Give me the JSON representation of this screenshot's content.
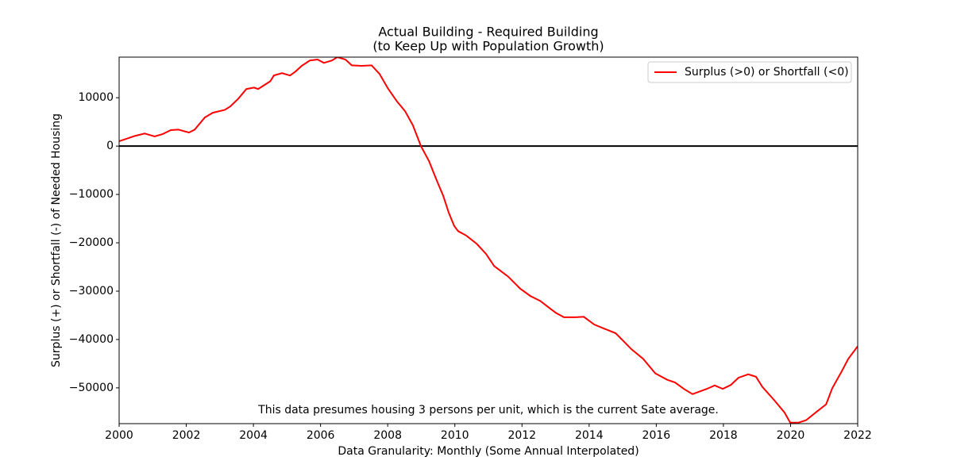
{
  "chart_data": {
    "type": "line",
    "title": [
      "Actual Building - Required Building",
      "(to Keep Up with Population Growth)"
    ],
    "xlabel": "Data Granularity: Monthly (Some Annual Interpolated)",
    "ylabel": "Surplus (+) or Shortfall (-) of Needed Housing",
    "annotation": "This data presumes housing 3 persons per unit, which is the current Sate average.",
    "x": [
      2000.0,
      2000.47,
      2000.76,
      2001.06,
      2001.3,
      2001.54,
      2001.77,
      2002.08,
      2002.25,
      2002.55,
      2002.79,
      2003.15,
      2003.31,
      2003.55,
      2003.79,
      2004.02,
      2004.14,
      2004.5,
      2004.61,
      2004.85,
      2005.09,
      2005.25,
      2005.44,
      2005.68,
      2005.91,
      2006.1,
      2006.34,
      2006.5,
      2006.74,
      2006.93,
      2007.22,
      2007.52,
      2007.76,
      2008.0,
      2008.28,
      2008.52,
      2008.75,
      2008.99,
      2009.23,
      2009.46,
      2009.65,
      2009.82,
      2009.98,
      2010.1,
      2010.34,
      2010.65,
      2010.93,
      2011.17,
      2011.59,
      2011.95,
      2012.25,
      2012.54,
      2012.82,
      2013.01,
      2013.25,
      2013.6,
      2013.84,
      2014.15,
      2014.43,
      2014.79,
      2015.02,
      2015.26,
      2015.61,
      2015.97,
      2016.32,
      2016.56,
      2016.84,
      2017.08,
      2017.27,
      2017.51,
      2017.74,
      2017.98,
      2018.22,
      2018.45,
      2018.74,
      2018.97,
      2019.16,
      2019.52,
      2019.82,
      2019.99,
      2020.23,
      2020.46,
      2020.82,
      2021.06,
      2021.24,
      2021.53,
      2021.72,
      2022.0
    ],
    "series": [
      {
        "name": "Surplus (>0) or Shortfall (<0)",
        "color": "#ff0000",
        "values": [
          1000,
          2100,
          2600,
          2000,
          2500,
          3300,
          3400,
          2800,
          3400,
          5900,
          6900,
          7500,
          8200,
          9800,
          11800,
          12100,
          11800,
          13400,
          14600,
          15100,
          14600,
          15400,
          16600,
          17700,
          17900,
          17200,
          17700,
          18400,
          17900,
          16700,
          16600,
          16700,
          14900,
          12000,
          9200,
          7200,
          4300,
          0,
          -3100,
          -7100,
          -10200,
          -13800,
          -16500,
          -17600,
          -18500,
          -20200,
          -22300,
          -24800,
          -27000,
          -29500,
          -31000,
          -32000,
          -33500,
          -34500,
          -35400,
          -35400,
          -35300,
          -36900,
          -37700,
          -38700,
          -40300,
          -42000,
          -44000,
          -47000,
          -48300,
          -48900,
          -50300,
          -51300,
          -50800,
          -50200,
          -49500,
          -50200,
          -49400,
          -47900,
          -47200,
          -47700,
          -49800,
          -52600,
          -55100,
          -57200,
          -57200,
          -56700,
          -54700,
          -53400,
          -50100,
          -46500,
          -44000,
          -41400
        ]
      }
    ],
    "hline": 0,
    "hline_color": "#000000",
    "xlim": [
      2000,
      2022
    ],
    "xticks": [
      2000,
      2002,
      2004,
      2006,
      2008,
      2010,
      2012,
      2014,
      2016,
      2018,
      2020,
      2022
    ],
    "ylim": [
      -57400,
      18400
    ],
    "yticks": [
      {
        "value": -50000,
        "label": "−50000"
      },
      {
        "value": -40000,
        "label": "−40000"
      },
      {
        "value": -30000,
        "label": "−30000"
      },
      {
        "value": -20000,
        "label": "−20000"
      },
      {
        "value": -10000,
        "label": "−10000"
      },
      0,
      10000
    ],
    "legend": "upper right",
    "grid": false
  }
}
